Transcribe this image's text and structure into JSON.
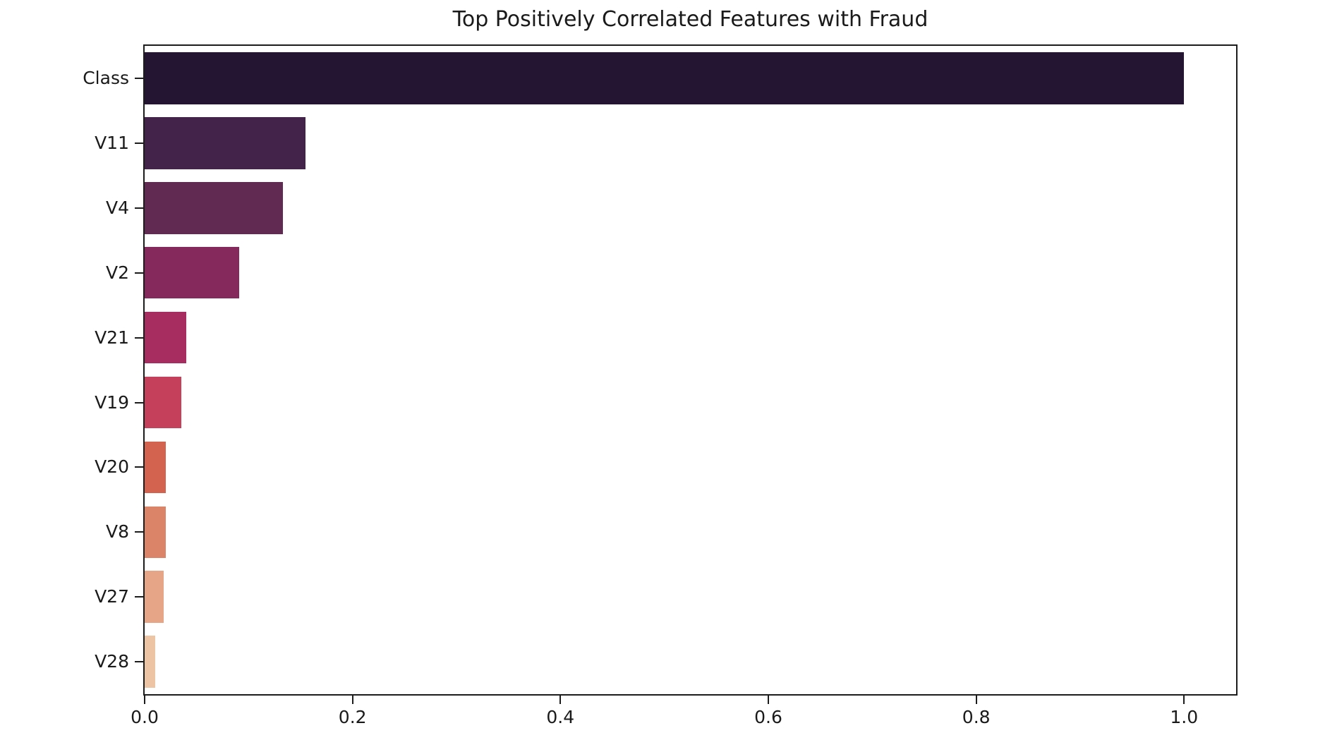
{
  "chart_data": {
    "type": "bar",
    "orientation": "horizontal",
    "title": "Top Positively Correlated Features with Fraud",
    "categories": [
      "Class",
      "V11",
      "V4",
      "V2",
      "V21",
      "V19",
      "V20",
      "V8",
      "V27",
      "V28"
    ],
    "values": [
      1.0,
      0.155,
      0.133,
      0.091,
      0.04,
      0.035,
      0.02,
      0.02,
      0.018,
      0.01
    ],
    "bar_colors": [
      "#241632",
      "#432349",
      "#602a53",
      "#85295d",
      "#a72d60",
      "#c5405a",
      "#d3634f",
      "#dc8468",
      "#e5a586",
      "#edc5a5"
    ],
    "xlabel": "",
    "ylabel": "",
    "xlim": [
      0,
      1.05
    ],
    "xticks": [
      0.0,
      0.2,
      0.4,
      0.6,
      0.8,
      1.0
    ],
    "xtick_labels": [
      "0.0",
      "0.2",
      "0.4",
      "0.6",
      "0.8",
      "1.0"
    ],
    "grid": false,
    "legend": false,
    "background": "#ffffff",
    "text_color": "#1a1a1a",
    "bar_height_fraction": 0.8
  }
}
